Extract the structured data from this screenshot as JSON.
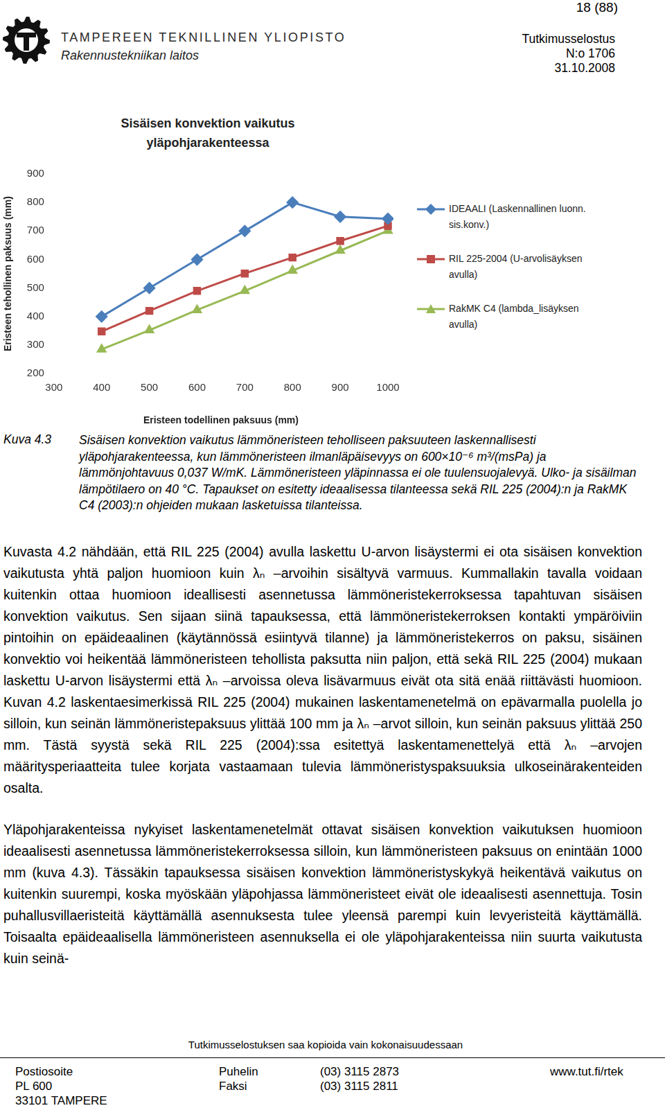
{
  "header": {
    "page": "18 (88)",
    "university": "TAMPEREEN TEKNILLINEN YLIOPISTO",
    "department": "Rakennustekniikan laitos",
    "doc_type": "Tutkimusselostus",
    "number": "N:o 1706",
    "date": "31.10.2008"
  },
  "chart_data": {
    "type": "line",
    "title": "Sisäisen konvektion vaikutus yläpohjarakenteessa",
    "x_label": "Eristeen todellinen paksuus (mm)",
    "y_label": "Eristeen tehollinen paksuus (mm)",
    "x": [
      400,
      500,
      600,
      700,
      800,
      900,
      1000
    ],
    "series": [
      {
        "name": "IDEAALI (Laskennallinen luonn. sis.konv.)",
        "color": "#4a7ebb",
        "marker": "diamond",
        "values": [
          400,
          500,
          600,
          700,
          800,
          750,
          743
        ]
      },
      {
        "name": "RIL 225-2004 (U-arvolisäyksen avulla)",
        "color": "#be4b48",
        "marker": "square",
        "values": [
          348,
          420,
          490,
          551,
          607,
          665,
          718
        ]
      },
      {
        "name": "RakMK C4 (lambda_lisäyksen avulla)",
        "color": "#98b954",
        "marker": "triangle",
        "values": [
          285,
          352,
          423,
          490,
          561,
          631,
          701
        ]
      }
    ],
    "xlim": [
      300,
      1000
    ],
    "xticks": [
      300,
      400,
      500,
      600,
      700,
      800,
      900,
      1000
    ],
    "ylim": [
      200,
      900
    ],
    "yticks": [
      200,
      300,
      400,
      500,
      600,
      700,
      800,
      900
    ],
    "grid": false,
    "legend": "right"
  },
  "caption": {
    "label": "Kuva 4.3",
    "text": "Sisäisen konvektion vaikutus lämmöneristeen teholliseen paksuuteen laskennallisesti yläpohjarakenteessa, kun lämmöneristeen ilmanläpäisevyys on 600×10⁻⁶ m³/(msPa) ja lämmönjohtavuus 0,037 W/mK. Lämmöneristeen yläpinnassa ei ole tuulensuojalevyä. Ulko- ja sisäilman lämpötilaero on 40 °C. Tapaukset on esitetty ideaalisessa tilanteessa sekä RIL 225 (2004):n ja RakMK C4 (2003):n ohjeiden mukaan lasketuissa tilanteissa."
  },
  "paragraphs": [
    "Kuvasta 4.2 nähdään, että RIL 225 (2004) avulla laskettu U-arvon lisäystermi ei ota sisäisen konvektion vaikutusta yhtä paljon huomioon kuin λₙ –arvoihin sisältyvä varmuus. Kummallakin tavalla voidaan kuitenkin ottaa huomioon ideallisesti asennetussa lämmöneristekerroksessa tapahtuvan sisäisen konvektion vaikutus. Sen sijaan siinä tapauksessa, että lämmöneristekerroksen kontakti ympäröiviin pintoihin on epäideaalinen (käytännössä esiintyvä tilanne) ja lämmöneristekerros on paksu, sisäinen konvektio voi heikentää lämmöneristeen tehollista paksutta niin paljon, että sekä RIL 225 (2004) mukaan laskettu U-arvon lisäystermi että λₙ –arvoissa oleva lisävarmuus eivät ota sitä enää riittävästi huomioon. Kuvan 4.2 laskentaesimerkissä RIL 225 (2004) mukainen laskentamenetelmä on epävarmalla puolella jo silloin, kun seinän lämmöneristepaksuus ylittää 100 mm ja λₙ –arvot silloin, kun seinän paksuus ylittää 250 mm. Tästä syystä sekä RIL 225 (2004):ssa esitettyä laskentamenettelyä että λₙ –arvojen määritysperiaatteita tulee korjata vastaamaan tulevia lämmöneristyspaksuuksia ulkoseinärakenteiden osalta.",
    "Yläpohjarakenteissa nykyiset laskentamenetelmät ottavat sisäisen konvektion vaikutuksen huomioon ideaalisesti asennetussa lämmöneristekerroksessa silloin, kun lämmöneristeen paksuus on enintään 1000 mm (kuva 4.3). Tässäkin tapauksessa sisäisen konvektion lämmöneristyskykyä heikentävä vaikutus on kuitenkin suurempi, koska myöskään yläpohjassa lämmöneristeet eivät ole ideaalisesti asennettuja. Tosin puhallusvillaeristeitä käyttämällä asennuksesta tulee yleensä parempi kuin levyeristeitä käyttämällä. Toisaalta epäideaalisella lämmöneristeen asennuksella ei ole yläpohjarakenteissa niin suurta vaikutusta kuin seinä-"
  ],
  "footer": {
    "notice": "Tutkimusselostuksen saa kopioida vain kokonaisuudessaan",
    "columns": [
      [
        "Postiosoite",
        "PL 600",
        "33101 TAMPERE"
      ],
      [
        "Puhelin",
        "Faksi"
      ],
      [
        "(03) 3115 2873",
        "(03) 3115 2811"
      ],
      [
        "www.tut.fi/rtek"
      ]
    ]
  }
}
